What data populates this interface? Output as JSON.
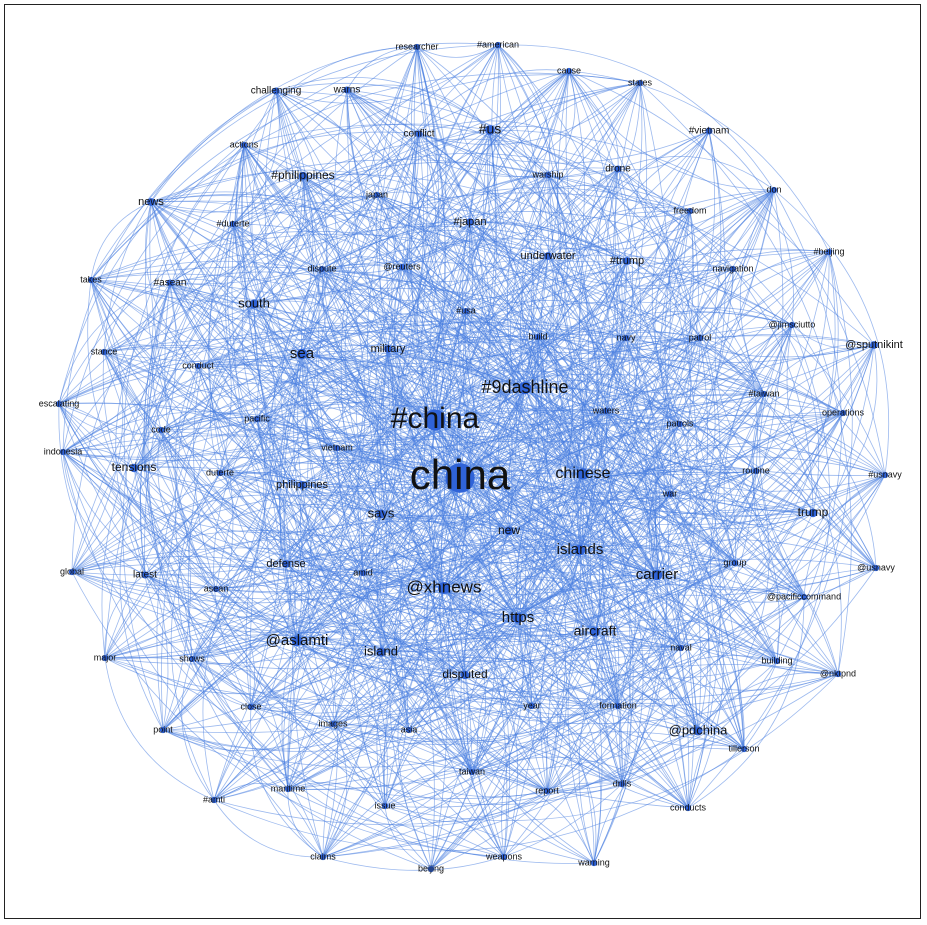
{
  "network": {
    "nodes": [
      {
        "id": "china",
        "label": "china",
        "size": 42
      },
      {
        "id": "hchina",
        "label": "#china",
        "size": 30
      },
      {
        "id": "h9dashline",
        "label": "#9dashline",
        "size": 18
      },
      {
        "id": "xhnews",
        "label": "@xhnews",
        "size": 17
      },
      {
        "id": "chinese",
        "label": "chinese",
        "size": 16
      },
      {
        "id": "https",
        "label": "https",
        "size": 15
      },
      {
        "id": "islands",
        "label": "islands",
        "size": 15
      },
      {
        "id": "carrier",
        "label": "carrier",
        "size": 15
      },
      {
        "id": "aircraft",
        "label": "aircraft",
        "size": 14
      },
      {
        "id": "aslamti",
        "label": "@aslamti",
        "size": 15
      },
      {
        "id": "sea",
        "label": "sea",
        "size": 15
      },
      {
        "id": "says",
        "label": "says",
        "size": 13
      },
      {
        "id": "island",
        "label": "island",
        "size": 13
      },
      {
        "id": "hus",
        "label": "#us",
        "size": 14
      },
      {
        "id": "pdchina",
        "label": "@pdchina",
        "size": 13
      },
      {
        "id": "south",
        "label": "south",
        "size": 13
      },
      {
        "id": "trump",
        "label": "trump",
        "size": 12
      },
      {
        "id": "tensions",
        "label": "tensions",
        "size": 12
      },
      {
        "id": "new",
        "label": "new",
        "size": 12
      },
      {
        "id": "disputed",
        "label": "disputed",
        "size": 12
      },
      {
        "id": "hphilippines",
        "label": "#philippines",
        "size": 12
      },
      {
        "id": "htrump",
        "label": "#trump",
        "size": 11
      },
      {
        "id": "underwater",
        "label": "underwater",
        "size": 11
      },
      {
        "id": "military",
        "label": "military",
        "size": 11
      },
      {
        "id": "philippines",
        "label": "philippines",
        "size": 11
      },
      {
        "id": "hjapan",
        "label": "#japan",
        "size": 11
      },
      {
        "id": "sputnikint",
        "label": "@sputnikint",
        "size": 11
      },
      {
        "id": "news",
        "label": "news",
        "size": 11
      },
      {
        "id": "latest",
        "label": "latest",
        "size": 10
      },
      {
        "id": "defense",
        "label": "defense",
        "size": 11
      },
      {
        "id": "conflict",
        "label": "conflict",
        "size": 10
      },
      {
        "id": "warns",
        "label": "warns",
        "size": 10
      },
      {
        "id": "drone",
        "label": "drone",
        "size": 10
      },
      {
        "id": "hvietnam",
        "label": "#vietnam",
        "size": 10
      },
      {
        "id": "challenging",
        "label": "challenging",
        "size": 10
      },
      {
        "id": "researcher",
        "label": "researcher",
        "size": 9
      },
      {
        "id": "hamerican",
        "label": "#american",
        "size": 9
      },
      {
        "id": "cause",
        "label": "cause",
        "size": 9
      },
      {
        "id": "states",
        "label": "states",
        "size": 9
      },
      {
        "id": "actions",
        "label": "actions",
        "size": 9
      },
      {
        "id": "japan",
        "label": "japan",
        "size": 9
      },
      {
        "id": "warship",
        "label": "warship",
        "size": 9
      },
      {
        "id": "freedom",
        "label": "freedom",
        "size": 9
      },
      {
        "id": "don",
        "label": "don",
        "size": 9
      },
      {
        "id": "hduterte",
        "label": "#duterte",
        "size": 9
      },
      {
        "id": "hbeijing",
        "label": "#beijing",
        "size": 9
      },
      {
        "id": "takes",
        "label": "takes",
        "size": 9
      },
      {
        "id": "hasean",
        "label": "#asean",
        "size": 10
      },
      {
        "id": "dispute",
        "label": "dispute",
        "size": 9
      },
      {
        "id": "reuters",
        "label": "@reuters",
        "size": 9
      },
      {
        "id": "navigation",
        "label": "navigation",
        "size": 9
      },
      {
        "id": "husa",
        "label": "#usa",
        "size": 9
      },
      {
        "id": "build",
        "label": "build",
        "size": 9
      },
      {
        "id": "navy",
        "label": "navy",
        "size": 9
      },
      {
        "id": "patrol",
        "label": "patrol",
        "size": 9
      },
      {
        "id": "jimsciutto",
        "label": "@jimsciutto",
        "size": 9
      },
      {
        "id": "stance",
        "label": "stance",
        "size": 9
      },
      {
        "id": "conduct",
        "label": "conduct",
        "size": 9
      },
      {
        "id": "escalating",
        "label": "escalating",
        "size": 9
      },
      {
        "id": "htaiwan",
        "label": "#taiwan",
        "size": 9
      },
      {
        "id": "code",
        "label": "code",
        "size": 9
      },
      {
        "id": "pacific",
        "label": "pacific",
        "size": 9
      },
      {
        "id": "waters",
        "label": "waters",
        "size": 9
      },
      {
        "id": "patrols",
        "label": "patrols",
        "size": 9
      },
      {
        "id": "operations",
        "label": "operations",
        "size": 9
      },
      {
        "id": "vietnam",
        "label": "vietnam",
        "size": 9
      },
      {
        "id": "indonesia",
        "label": "indonesia",
        "size": 9
      },
      {
        "id": "duterte",
        "label": "duterte",
        "size": 9
      },
      {
        "id": "routine",
        "label": "routine",
        "size": 9
      },
      {
        "id": "husnavy",
        "label": "#usnavy",
        "size": 9
      },
      {
        "id": "war",
        "label": "war",
        "size": 9
      },
      {
        "id": "global",
        "label": "global",
        "size": 9
      },
      {
        "id": "amid",
        "label": "amid",
        "size": 9
      },
      {
        "id": "asean",
        "label": "asean",
        "size": 9
      },
      {
        "id": "group",
        "label": "group",
        "size": 9
      },
      {
        "id": "usnavy",
        "label": "@usnavy",
        "size": 9
      },
      {
        "id": "pacificcommand",
        "label": "@pacificcommand",
        "size": 9
      },
      {
        "id": "major",
        "label": "major",
        "size": 9
      },
      {
        "id": "shows",
        "label": "shows",
        "size": 9
      },
      {
        "id": "naval",
        "label": "naval",
        "size": 9
      },
      {
        "id": "building",
        "label": "building",
        "size": 9
      },
      {
        "id": "nktpnd",
        "label": "@nktpnd",
        "size": 9
      },
      {
        "id": "close",
        "label": "close",
        "size": 9
      },
      {
        "id": "year",
        "label": "year",
        "size": 9
      },
      {
        "id": "formation",
        "label": "formation",
        "size": 9
      },
      {
        "id": "point",
        "label": "point",
        "size": 9
      },
      {
        "id": "images",
        "label": "images",
        "size": 9
      },
      {
        "id": "asia",
        "label": "asia",
        "size": 9
      },
      {
        "id": "tillerson",
        "label": "tillerson",
        "size": 9
      },
      {
        "id": "taiwan",
        "label": "taiwan",
        "size": 9
      },
      {
        "id": "hamti",
        "label": "#amti",
        "size": 9
      },
      {
        "id": "maritime",
        "label": "maritime",
        "size": 9
      },
      {
        "id": "report",
        "label": "report",
        "size": 9
      },
      {
        "id": "drills",
        "label": "drills",
        "size": 9
      },
      {
        "id": "issue",
        "label": "issue",
        "size": 9
      },
      {
        "id": "conducts",
        "label": "conducts",
        "size": 9
      },
      {
        "id": "claims",
        "label": "claims",
        "size": 9
      },
      {
        "id": "weapons",
        "label": "weapons",
        "size": 9
      },
      {
        "id": "warning",
        "label": "warning",
        "size": 9
      },
      {
        "id": "beijing",
        "label": "beijing",
        "size": 9
      }
    ],
    "colors": {
      "edge": "#4a7fe0",
      "node": "#2f63d8",
      "label": "#111111"
    }
  }
}
